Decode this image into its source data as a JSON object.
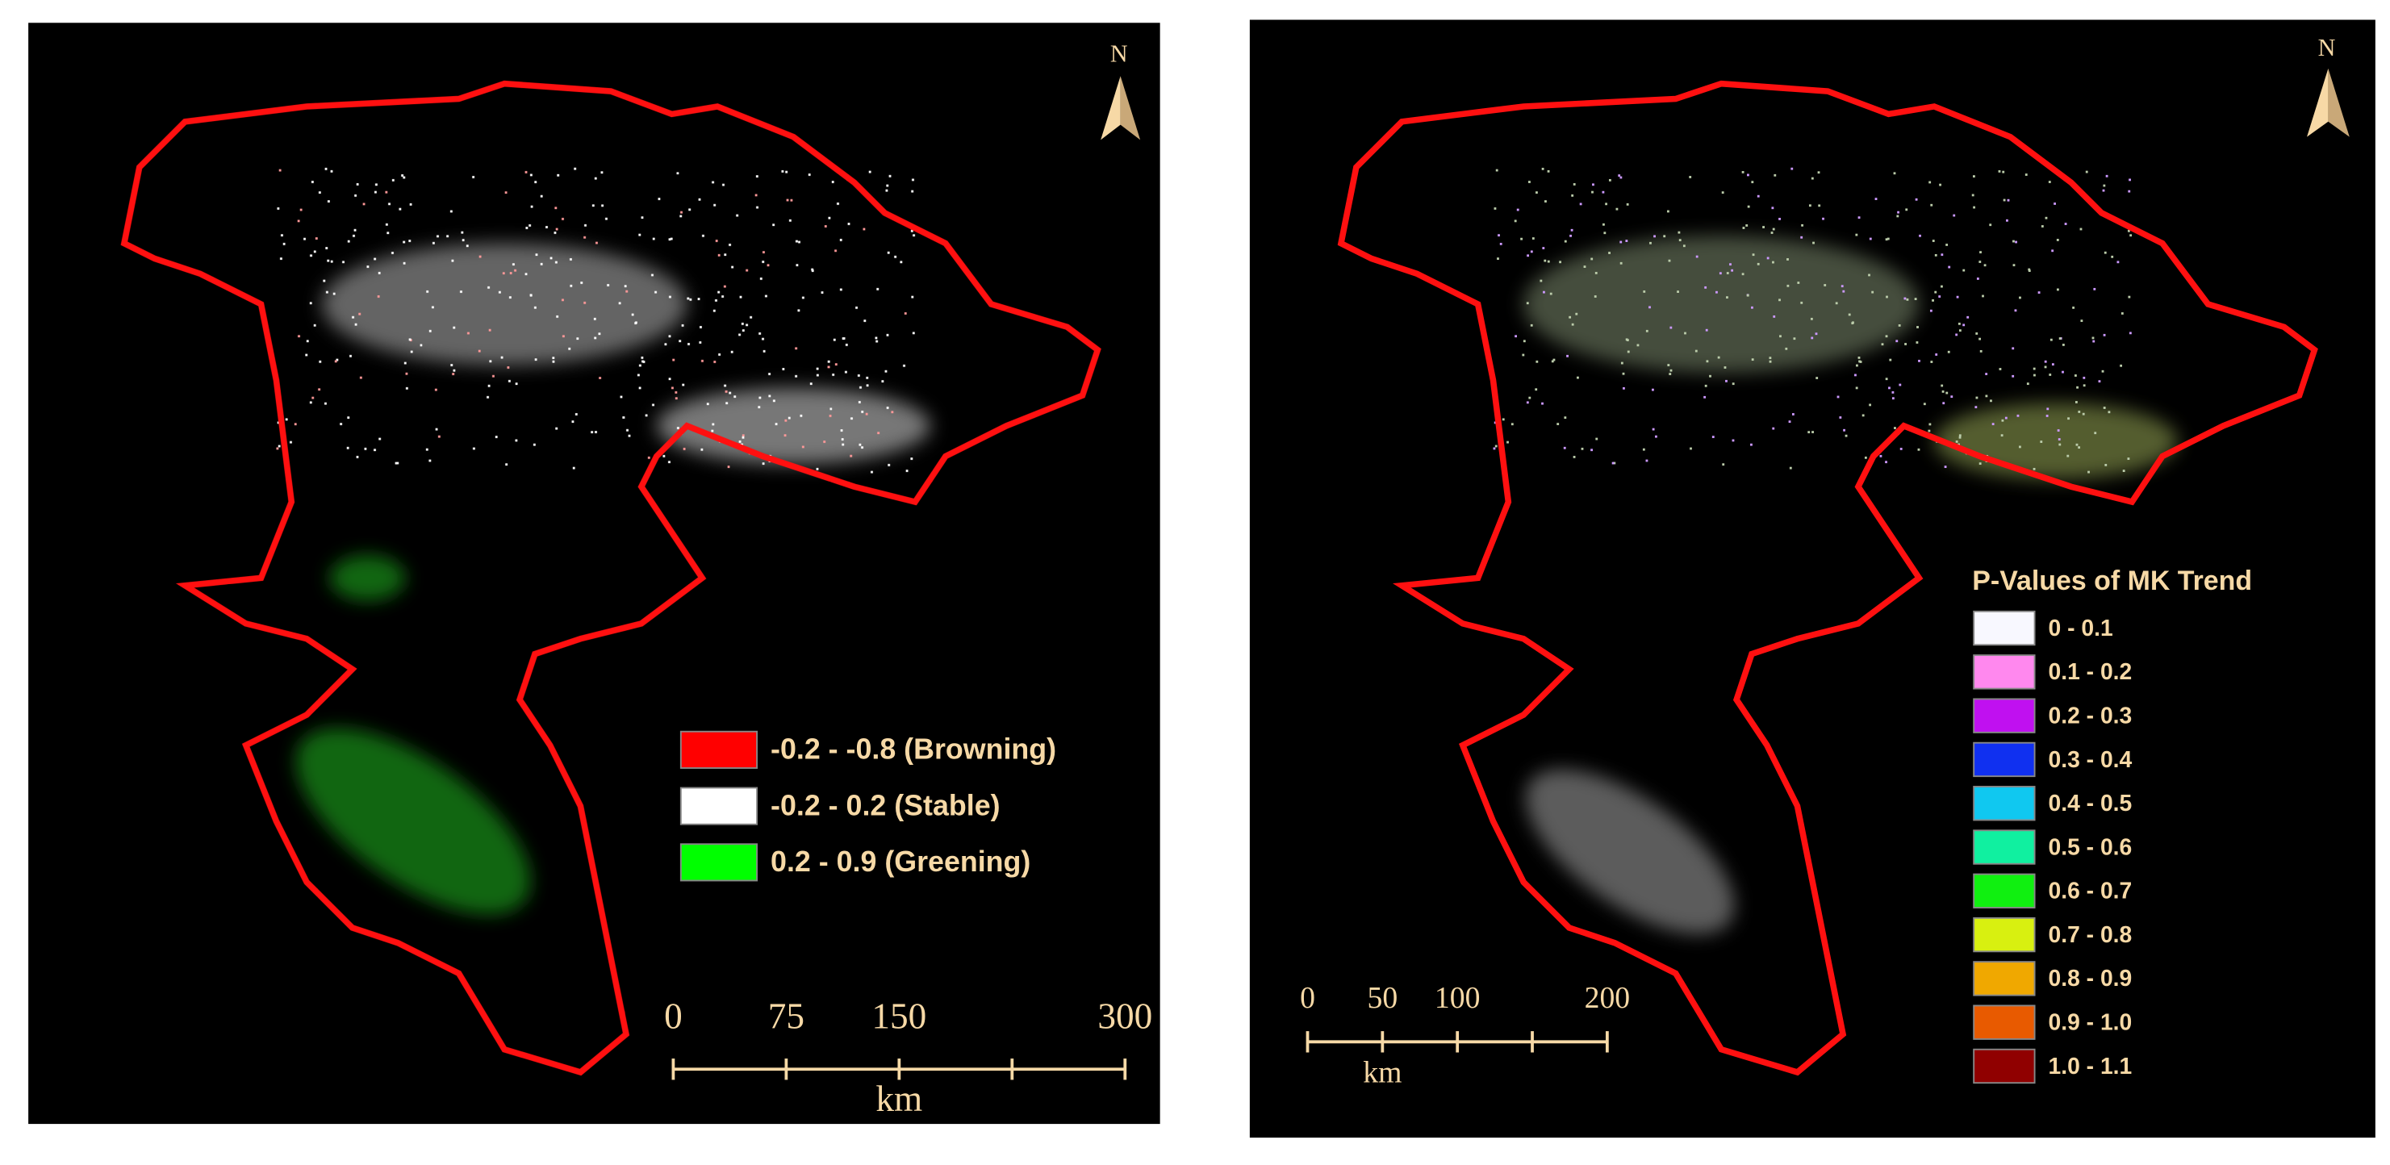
{
  "panels": [
    {
      "legend": {
        "items": [
          {
            "label": "-0.2 - -0.8 (Browning)",
            "color": "#ff0000"
          },
          {
            "label": "-0.2 - 0.2 (Stable)",
            "color": "#ffffff"
          },
          {
            "label": "0.2 - 0.9 (Greening)",
            "color": "#00ff00"
          }
        ]
      },
      "north": "N",
      "scale_bar": {
        "ticks": [
          0,
          75,
          150,
          null,
          300
        ],
        "unit": "km"
      }
    },
    {
      "legend": {
        "title": "P-Values of MK Trend",
        "items": [
          {
            "label": "0 - 0.1",
            "color": "#f8f8ff"
          },
          {
            "label": "0.1 - 0.2",
            "color": "#ff88ee"
          },
          {
            "label": "0.2 - 0.3",
            "color": "#c010f0"
          },
          {
            "label": "0.3 - 0.4",
            "color": "#1030f0"
          },
          {
            "label": "0.4 - 0.5",
            "color": "#10c8f0"
          },
          {
            "label": "0.5 - 0.6",
            "color": "#10f0a0"
          },
          {
            "label": "0.6 - 0.7",
            "color": "#10f010"
          },
          {
            "label": "0.7 - 0.8",
            "color": "#d8f010"
          },
          {
            "label": "0.8 - 0.9",
            "color": "#f0a800"
          },
          {
            "label": "0.9 - 1.0",
            "color": "#e85a00"
          },
          {
            "label": "1.0 - 1.1",
            "color": "#900000"
          }
        ]
      },
      "north": "N",
      "scale_bar": {
        "ticks": [
          0,
          50,
          100,
          null,
          200
        ],
        "unit": "km"
      }
    }
  ]
}
